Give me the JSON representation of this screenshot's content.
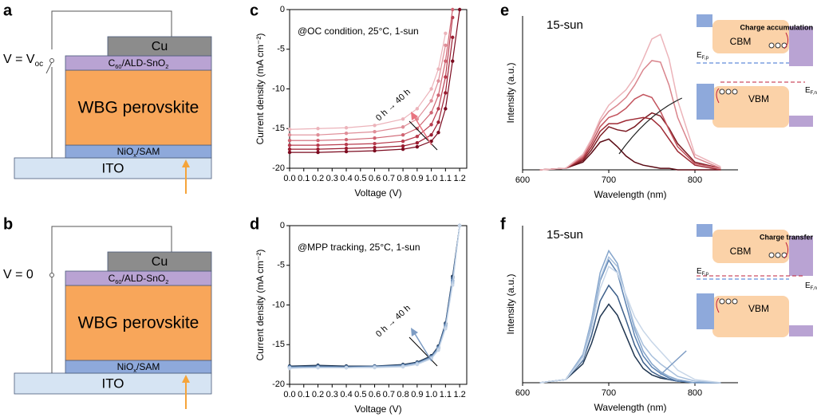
{
  "panel_labels": [
    "a",
    "b",
    "c",
    "d",
    "e",
    "f"
  ],
  "diagrams": [
    {
      "voltage": {
        "parts": [
          "V = V",
          "oc"
        ]
      },
      "cu": "Cu",
      "etl": {
        "parts": [
          "C",
          "60",
          "/ALD-SnO",
          "2"
        ]
      },
      "absorber": "WBG perovskite",
      "htl": {
        "parts": [
          "NiO",
          "x",
          "/SAM"
        ]
      },
      "substrate": "ITO"
    },
    {
      "voltage": {
        "parts": [
          "V = 0"
        ]
      },
      "cu": "Cu",
      "etl": {
        "parts": [
          "C",
          "60",
          "/ALD-SnO",
          "2"
        ]
      },
      "absorber": "WBG perovskite",
      "htl": {
        "parts": [
          "NiO",
          "x",
          "/SAM"
        ]
      },
      "substrate": "ITO"
    }
  ],
  "chart_data": [
    {
      "type": "line",
      "markers": true,
      "frame": true,
      "annotation": "@OC condition, 25°C, 1-sun",
      "arrow_label": "0 h → 40 h",
      "arrow_color": "#e8737f",
      "xlabel": "Voltage (V)",
      "ylabel": "Current density (mA cm⁻²)",
      "xlim": [
        0,
        1.25
      ],
      "ylim": [
        -20,
        0
      ],
      "xticks": [
        {
          "value": 0,
          "label": "0.0"
        },
        {
          "value": 0.1,
          "label": "0.1"
        },
        {
          "value": 0.2,
          "label": "0.2"
        },
        {
          "value": 0.3,
          "label": "0.3"
        },
        {
          "value": 0.4,
          "label": "0.4"
        },
        {
          "value": 0.5,
          "label": "0.5"
        },
        {
          "value": 0.6,
          "label": "0.6"
        },
        {
          "value": 0.7,
          "label": "0.7"
        },
        {
          "value": 0.8,
          "label": "0.8"
        },
        {
          "value": 0.9,
          "label": "0.9"
        },
        {
          "value": 1,
          "label": "1.0"
        },
        {
          "value": 1.1,
          "label": "1.1"
        },
        {
          "value": 1.2,
          "label": "1.2"
        }
      ],
      "yticks": [
        -20,
        -15,
        -10,
        -5,
        0
      ],
      "x": [
        0,
        0.2,
        0.4,
        0.6,
        0.8,
        0.9,
        1.0,
        1.05,
        1.1,
        1.15,
        1.2
      ],
      "series": [
        {
          "color": "#7b0a1f",
          "values": [
            -18.0,
            -18.0,
            -17.9,
            -17.8,
            -17.6,
            -17.3,
            -16.6,
            -15.5,
            -12.5,
            -6.5,
            0
          ]
        },
        {
          "color": "#9a1c30",
          "values": [
            -17.6,
            -17.6,
            -17.5,
            -17.4,
            -17.2,
            -16.8,
            -15.8,
            -14.2,
            -10.5,
            -3.5,
            null
          ]
        },
        {
          "color": "#b83b4d",
          "values": [
            -17.1,
            -17.1,
            -17.0,
            -16.9,
            -16.6,
            -16.0,
            -14.5,
            -12.5,
            -8.5,
            -1,
            null
          ]
        },
        {
          "color": "#cf6472",
          "values": [
            -16.5,
            -16.5,
            -16.4,
            -16.2,
            -15.8,
            -15.0,
            -13.0,
            -10.8,
            -6.5,
            0,
            null
          ]
        },
        {
          "color": "#df8e98",
          "values": [
            -15.8,
            -15.8,
            -15.6,
            -15.4,
            -14.8,
            -13.8,
            -11.5,
            -9.0,
            -4.5,
            null,
            null
          ]
        },
        {
          "color": "#ecb3ba",
          "values": [
            -15.1,
            -15.0,
            -14.9,
            -14.6,
            -13.8,
            -12.5,
            -10.0,
            -7.5,
            -3.0,
            null,
            null
          ]
        }
      ]
    },
    {
      "type": "line",
      "markers": true,
      "frame": true,
      "annotation": "@MPP tracking, 25°C, 1-sun",
      "arrow_label": "0 h → 40 h",
      "arrow_color": "#7d9cc4",
      "xlabel": "Voltage (V)",
      "ylabel": "Current density (mA cm⁻²)",
      "xlim": [
        0,
        1.25
      ],
      "ylim": [
        -20,
        0
      ],
      "xticks": [
        {
          "value": 0,
          "label": "0.0"
        },
        {
          "value": 0.1,
          "label": "0.1"
        },
        {
          "value": 0.2,
          "label": "0.2"
        },
        {
          "value": 0.3,
          "label": "0.3"
        },
        {
          "value": 0.4,
          "label": "0.4"
        },
        {
          "value": 0.5,
          "label": "0.5"
        },
        {
          "value": 0.6,
          "label": "0.6"
        },
        {
          "value": 0.7,
          "label": "0.7"
        },
        {
          "value": 0.8,
          "label": "0.8"
        },
        {
          "value": 0.9,
          "label": "0.9"
        },
        {
          "value": 1,
          "label": "1.0"
        },
        {
          "value": 1.1,
          "label": "1.1"
        },
        {
          "value": 1.2,
          "label": "1.2"
        }
      ],
      "yticks": [
        -20,
        -15,
        -10,
        -5,
        0
      ],
      "x": [
        0,
        0.2,
        0.4,
        0.6,
        0.8,
        0.9,
        1.0,
        1.05,
        1.1,
        1.15,
        1.2
      ],
      "series": [
        {
          "color": "#1f3550",
          "values": [
            -17.7,
            -17.6,
            -17.7,
            -17.7,
            -17.5,
            -17.2,
            -16.4,
            -15.2,
            -12.3,
            -6.4,
            0
          ]
        },
        {
          "color": "#3d5f8a",
          "values": [
            -17.8,
            -17.7,
            -17.8,
            -17.7,
            -17.6,
            -17.3,
            -16.5,
            -15.3,
            -12.4,
            -6.6,
            0
          ]
        },
        {
          "color": "#5e84b3",
          "values": [
            -17.8,
            -17.8,
            -17.8,
            -17.8,
            -17.6,
            -17.3,
            -16.6,
            -15.4,
            -12.6,
            -6.9,
            0
          ]
        },
        {
          "color": "#86a6cc",
          "values": [
            -17.9,
            -17.8,
            -17.9,
            -17.8,
            -17.7,
            -17.4,
            -16.6,
            -15.5,
            -12.8,
            -7.1,
            0
          ]
        },
        {
          "color": "#a7bfdc",
          "values": [
            -17.9,
            -17.9,
            -17.9,
            -17.8,
            -17.7,
            -17.4,
            -16.7,
            -15.6,
            -12.9,
            -7.3,
            0
          ]
        },
        {
          "color": "#c7d6e8",
          "values": [
            -18.0,
            -17.9,
            -17.9,
            -17.9,
            -17.8,
            -17.5,
            -16.8,
            -15.7,
            -13.0,
            -7.5,
            0
          ]
        }
      ]
    },
    {
      "type": "line",
      "markers": false,
      "frame": false,
      "annotation": "15-sun",
      "xlabel": "Wavelength (nm)",
      "ylabel": "Intensity (a.u.)",
      "xlim": [
        600,
        850
      ],
      "ylim": [
        0,
        1
      ],
      "xticks": [
        600,
        700,
        800
      ],
      "x": [
        620,
        650,
        670,
        680,
        690,
        700,
        710,
        720,
        730,
        740,
        750,
        760,
        770,
        780,
        800,
        830
      ],
      "series": [
        {
          "color": "#5a0a14",
          "values": [
            0,
            0.01,
            0.05,
            0.11,
            0.18,
            0.2,
            0.15,
            0.09,
            0.05,
            0.03,
            0.02,
            0.01,
            0.01,
            0,
            0,
            0
          ]
        },
        {
          "color": "#7b1a22",
          "values": [
            0,
            0.01,
            0.06,
            0.13,
            0.22,
            0.28,
            0.26,
            0.25,
            0.28,
            0.33,
            0.37,
            0.35,
            0.27,
            0.17,
            0.05,
            0.01
          ]
        },
        {
          "color": "#9e2a34",
          "values": [
            0,
            0.01,
            0.07,
            0.15,
            0.25,
            0.3,
            0.3,
            0.32,
            0.33,
            0.34,
            0.33,
            0.28,
            0.2,
            0.12,
            0.03,
            0
          ]
        },
        {
          "color": "#c2535d",
          "values": [
            0,
            0.01,
            0.08,
            0.17,
            0.28,
            0.34,
            0.36,
            0.4,
            0.46,
            0.49,
            0.47,
            0.38,
            0.26,
            0.15,
            0.04,
            0.01
          ]
        },
        {
          "color": "#d9848c",
          "values": [
            0,
            0.01,
            0.09,
            0.19,
            0.31,
            0.38,
            0.42,
            0.47,
            0.55,
            0.65,
            0.71,
            0.7,
            0.55,
            0.34,
            0.08,
            0.01
          ]
        },
        {
          "color": "#ecb4ba",
          "values": [
            0,
            0.01,
            0.1,
            0.2,
            0.33,
            0.42,
            0.47,
            0.52,
            0.6,
            0.72,
            0.85,
            0.88,
            0.72,
            0.45,
            0.1,
            0.02
          ]
        }
      ],
      "inset": {
        "cbm": "CBM",
        "vbm": "VBM",
        "note": "Charge accumulation",
        "efp": {
          "parts": [
            "E",
            "F,p"
          ]
        },
        "efn": {
          "parts": [
            "E",
            "F,n"
          ]
        }
      }
    },
    {
      "type": "line",
      "markers": false,
      "frame": false,
      "annotation": "15-sun",
      "xlabel": "Wavelength (nm)",
      "ylabel": "Intensity (a.u.)",
      "xlim": [
        600,
        850
      ],
      "ylim": [
        0,
        1
      ],
      "xticks": [
        600,
        700,
        800
      ],
      "x": [
        620,
        650,
        670,
        680,
        690,
        700,
        710,
        720,
        730,
        740,
        750,
        760,
        770,
        780,
        800,
        830
      ],
      "series": [
        {
          "color": "#1f3550",
          "values": [
            0,
            0.02,
            0.12,
            0.25,
            0.42,
            0.5,
            0.43,
            0.3,
            0.17,
            0.09,
            0.05,
            0.03,
            0.02,
            0.01,
            0,
            0
          ]
        },
        {
          "color": "#3d5f8a",
          "values": [
            0,
            0.02,
            0.14,
            0.3,
            0.52,
            0.62,
            0.55,
            0.4,
            0.24,
            0.13,
            0.07,
            0.04,
            0.02,
            0.01,
            0,
            0
          ]
        },
        {
          "color": "#5e84b3",
          "values": [
            0,
            0.02,
            0.17,
            0.37,
            0.65,
            0.78,
            0.7,
            0.5,
            0.3,
            0.17,
            0.1,
            0.06,
            0.03,
            0.01,
            0,
            0
          ]
        },
        {
          "color": "#86a6cc",
          "values": [
            0,
            0.02,
            0.18,
            0.4,
            0.7,
            0.84,
            0.76,
            0.55,
            0.34,
            0.2,
            0.12,
            0.07,
            0.04,
            0.02,
            0,
            0
          ]
        },
        {
          "color": "#a7bfdc",
          "values": [
            0,
            0.02,
            0.17,
            0.38,
            0.66,
            0.8,
            0.74,
            0.55,
            0.36,
            0.24,
            0.17,
            0.12,
            0.08,
            0.04,
            0.01,
            0
          ]
        },
        {
          "color": "#c7d6e8",
          "values": [
            0,
            0.02,
            0.15,
            0.34,
            0.6,
            0.74,
            0.7,
            0.56,
            0.42,
            0.33,
            0.26,
            0.2,
            0.14,
            0.08,
            0.02,
            0
          ]
        }
      ],
      "inset": {
        "cbm": "CBM",
        "vbm": "VBM",
        "note": "Charge transfer",
        "efp": {
          "parts": [
            "E",
            "F,p"
          ]
        },
        "efn": {
          "parts": [
            "E",
            "F,n"
          ]
        }
      }
    }
  ]
}
